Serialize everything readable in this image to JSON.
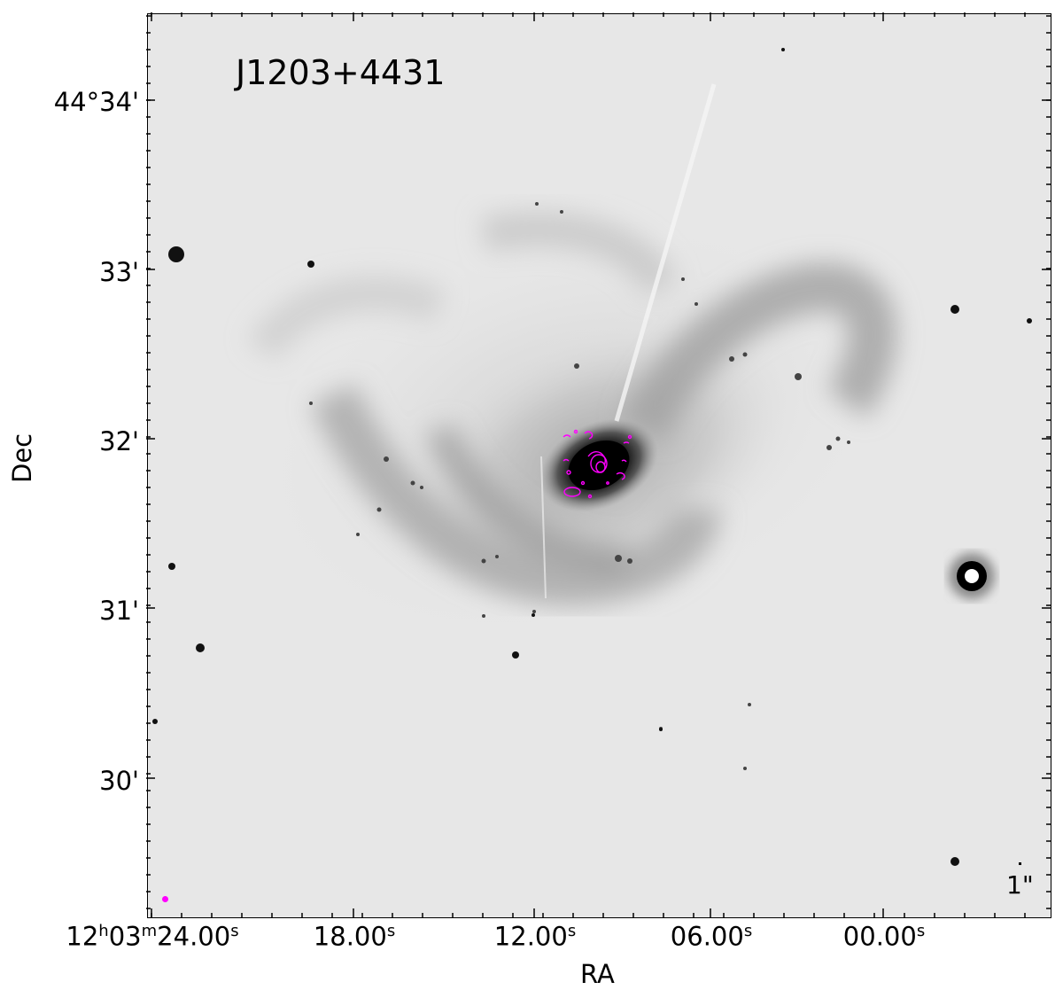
{
  "figure": {
    "title": "J1203+4431",
    "xlabel": "RA",
    "ylabel": "Dec",
    "x_ticks": [
      "12h03m24.00s",
      "18.00s",
      "12.00s",
      "06.00s",
      "00.00s"
    ],
    "x_tick_parts": [
      {
        "h": "12",
        "hu": "h",
        "m": "03",
        "mu": "m",
        "s": "24.00",
        "su": "s"
      },
      {
        "s": "18.00",
        "su": "s"
      },
      {
        "s": "12.00",
        "su": "s"
      },
      {
        "s": "06.00",
        "su": "s"
      },
      {
        "s": "00.00",
        "su": "s"
      }
    ],
    "y_ticks": [
      "44°34'",
      "33'",
      "32'",
      "31'",
      "30'"
    ],
    "beam_label": "1\"",
    "colors": {
      "sky_background": "#e7e7e7",
      "galaxy": "#000000",
      "contour": "#ff00ff",
      "beam": "#ff00ff",
      "frame": "#000000"
    },
    "colormap": "inverted-grayscale",
    "grid": false,
    "contour_overlay": "magenta radio contours on galaxy nucleus"
  }
}
